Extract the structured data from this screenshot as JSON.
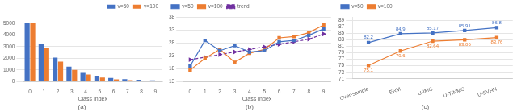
{
  "chart_data": [
    {
      "type": "bar",
      "title": "(a)",
      "xlabel": "Class Index",
      "categories": [
        0,
        1,
        2,
        3,
        4,
        5,
        6,
        7,
        8,
        9
      ],
      "series": [
        {
          "name": "v=50",
          "color": "#4472C4",
          "values": [
            5000,
            3200,
            2050,
            1280,
            800,
            500,
            300,
            200,
            150,
            100
          ]
        },
        {
          "name": "v=100",
          "color": "#ED7D31",
          "values": [
            5000,
            2900,
            1700,
            1000,
            600,
            350,
            190,
            110,
            80,
            50
          ]
        }
      ],
      "ylim": [
        0,
        5500
      ],
      "yticks": [
        0,
        1000,
        2000,
        3000,
        4000,
        5000
      ],
      "grid": true,
      "legend": "upper right"
    },
    {
      "type": "line",
      "title": "(b)",
      "xlabel": "Class Index",
      "categories": [
        0,
        1,
        2,
        3,
        4,
        5,
        6,
        7,
        8,
        9
      ],
      "series": [
        {
          "name": "v=50",
          "color": "#4472C4",
          "marker": "square",
          "line_style": "solid",
          "values": [
            19.0,
            29.0,
            25.0,
            27.0,
            24.5,
            25.0,
            28.5,
            29.0,
            31.0,
            33.5
          ]
        },
        {
          "name": "v=100",
          "color": "#ED7D31",
          "marker": "square",
          "line_style": "solid",
          "values": [
            17.5,
            22.0,
            25.5,
            20.5,
            24.0,
            25.5,
            30.0,
            30.5,
            32.0,
            35.0
          ]
        },
        {
          "name": "trend",
          "color": "#7030A0",
          "marker": "triangle-right",
          "line_style": "dashed",
          "values": [
            21.5,
            22.5,
            23.5,
            24.5,
            25.5,
            26.5,
            27.5,
            28.5,
            29.5,
            31.5
          ]
        }
      ],
      "ylim": [
        13,
        38
      ],
      "yticks": [
        13,
        18,
        23,
        28,
        33,
        38
      ],
      "grid": true,
      "legend": "upper left"
    },
    {
      "type": "line",
      "title": "(c)",
      "categories": [
        "Over-sample",
        "ERM",
        "U-IMG",
        "U-TINMG",
        "U-SVHN"
      ],
      "series": [
        {
          "name": "v=50",
          "color": "#4472C4",
          "marker": "square",
          "line_style": "solid",
          "values": [
            82.2,
            84.9,
            85.17,
            85.91,
            86.8
          ]
        },
        {
          "name": "v=100",
          "color": "#ED7D31",
          "marker": "square",
          "line_style": "solid",
          "values": [
            75.1,
            79.6,
            82.64,
            83.06,
            83.76
          ]
        }
      ],
      "ylim": [
        71,
        90
      ],
      "yticks": [
        71,
        73,
        75,
        77,
        79,
        81,
        83,
        85,
        87,
        89
      ],
      "grid": true,
      "legend": "upper left",
      "data_labels": true
    }
  ]
}
